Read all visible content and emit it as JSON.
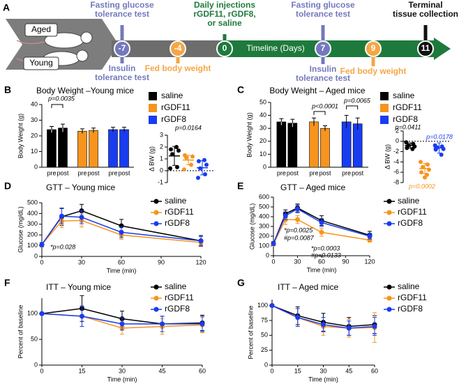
{
  "timeline": {
    "panel": "A",
    "groups": [
      "Aged",
      "Young"
    ],
    "axis_label": "Timeline (Days)",
    "events": [
      {
        "day": -7,
        "color": "#7479bd",
        "above": [
          "Fasting glucose",
          "tolerance test"
        ],
        "below": [
          "Insulin",
          "tolerance test"
        ]
      },
      {
        "day": -4,
        "color": "#f5a646",
        "below": [
          "Fed body weight"
        ]
      },
      {
        "day": 0,
        "color": "#1e7a3c",
        "above": [
          "Daily injections",
          "rGDF11, rGDF8,",
          "or saline"
        ]
      },
      {
        "day": 7,
        "color": "#7479bd",
        "above": [
          "Fasting glucose",
          "tolerance test"
        ],
        "below": [
          "Insulin",
          "tolerance test"
        ]
      },
      {
        "day": 9,
        "color": "#f5a646",
        "below": [
          "Fed body weight"
        ]
      },
      {
        "day": 11,
        "color": "#111111",
        "above": [
          "Terminal",
          "tissue collection"
        ]
      }
    ]
  },
  "chart_data": [
    {
      "type": "bar",
      "panel": "B",
      "title": "Body Weight –Young mice",
      "ylabel": "Body Weight (g)",
      "ylim": [
        0,
        40
      ],
      "yticks": [
        0,
        10,
        20,
        30,
        40
      ],
      "categories": [
        "pre",
        "post"
      ],
      "series": [
        {
          "name": "saline",
          "color": "#000000",
          "values": [
            24,
            25
          ],
          "errors": [
            2,
            2.5
          ]
        },
        {
          "name": "rGDF11",
          "color": "#f7941d",
          "values": [
            23,
            23.5
          ],
          "errors": [
            1.5,
            1.5
          ]
        },
        {
          "name": "rGDF8",
          "color": "#1a3cf0",
          "values": [
            24,
            24
          ],
          "errors": [
            1.5,
            1.5
          ]
        }
      ],
      "annotations": [
        {
          "text": "p=0.0035"
        }
      ]
    },
    {
      "type": "strip",
      "ylabel": "Δ BW (g)",
      "ylim": [
        -1,
        3
      ],
      "yticks": [
        -1,
        0,
        1,
        2,
        3
      ],
      "hline": 0,
      "series": [
        {
          "name": "saline",
          "color": "#000000",
          "values": [
            0.2,
            0.3,
            1.4,
            1.7,
            1.8,
            2.0
          ],
          "mean": 1.25,
          "error": 0.8
        },
        {
          "name": "rGDF11",
          "color": "#f7941d",
          "values": [
            0.1,
            0.5,
            1.1,
            1.2,
            1.3
          ],
          "mean": 0.9,
          "error": 0.4
        },
        {
          "name": "rGDF8",
          "color": "#1a3cf0",
          "values": [
            -0.6,
            -0.3,
            0.2,
            0.5,
            0.8,
            0.9
          ],
          "mean": 0.25,
          "error": 0.6
        }
      ],
      "annotations": [
        {
          "text": "p=0.0164"
        }
      ]
    },
    {
      "type": "bar",
      "panel": "C",
      "title": "Body Weight – Aged mice",
      "ylabel": "Body Weight (g)",
      "ylim": [
        0,
        50
      ],
      "yticks": [
        0,
        10,
        20,
        30,
        40,
        50
      ],
      "categories": [
        "pre",
        "post"
      ],
      "series": [
        {
          "name": "saline",
          "color": "#000000",
          "values": [
            35,
            34
          ],
          "errors": [
            2.5,
            3
          ]
        },
        {
          "name": "rGDF11",
          "color": "#f7941d",
          "values": [
            35,
            30
          ],
          "errors": [
            3,
            2
          ]
        },
        {
          "name": "rGDF8",
          "color": "#1a3cf0",
          "values": [
            35,
            33.5
          ],
          "errors": [
            5,
            4.5
          ]
        }
      ],
      "annotations": [
        {
          "text": "p<0.0001"
        },
        {
          "text": "p=0.0065"
        }
      ]
    },
    {
      "type": "strip",
      "ylabel": "Δ BW (g)",
      "ylim": [
        -8,
        2
      ],
      "yticks": [
        -8,
        -6,
        -4,
        -2,
        0,
        2
      ],
      "hline": 0,
      "series": [
        {
          "name": "saline",
          "color": "#000000",
          "values": [
            -0.2,
            -0.5,
            -0.8,
            -1.0,
            -1.3,
            -1.5
          ],
          "mean": -0.8,
          "error": 0.5
        },
        {
          "name": "rGDF11",
          "color": "#f7941d",
          "values": [
            -4.0,
            -4.5,
            -5.0,
            -5.5,
            -6.0,
            -6.5,
            -7.0
          ],
          "mean": -5.3,
          "error": 1
        },
        {
          "name": "rGDF8",
          "color": "#1a3cf0",
          "values": [
            -0.8,
            -1.0,
            -1.2,
            -1.5,
            -1.6,
            -2.6
          ],
          "mean": -1.3,
          "error": 1
        }
      ],
      "annotations": [
        {
          "text": "p=0.0411",
          "color": "#000000"
        },
        {
          "text": "p=0.0178",
          "color": "#1a3cf0"
        },
        {
          "text": "p=0.0002",
          "color": "#f7941d"
        }
      ]
    },
    {
      "type": "line",
      "panel": "D",
      "title": "GTT – Young mice",
      "xlabel": "Time (min)",
      "ylabel": "Glucose (mg/dL)",
      "x": [
        0,
        15,
        30,
        60,
        120
      ],
      "xlim": [
        0,
        120
      ],
      "xticks": [
        0,
        30,
        60,
        90,
        120
      ],
      "ylim": [
        0,
        500
      ],
      "yticks": [
        0,
        100,
        200,
        300,
        400,
        500
      ],
      "series": [
        {
          "name": "saline",
          "color": "#000000",
          "values": [
            110,
            370,
            425,
            285,
            145
          ],
          "errors": [
            20,
            80,
            60,
            60,
            50
          ]
        },
        {
          "name": "rGDF11",
          "color": "#f7941d",
          "values": [
            110,
            330,
            335,
            200,
            130
          ],
          "errors": [
            20,
            60,
            60,
            40,
            30
          ]
        },
        {
          "name": "rGDF8",
          "color": "#1a3cf0",
          "values": [
            110,
            375,
            365,
            225,
            145
          ],
          "errors": [
            20,
            70,
            60,
            50,
            40
          ]
        }
      ],
      "annotations": [
        {
          "text": "*p=0.028"
        }
      ]
    },
    {
      "type": "line",
      "panel": "E",
      "title": "GTT – Aged mice",
      "xlabel": "Time (min)",
      "ylabel": "Glucose (mg/dL)",
      "x": [
        0,
        15,
        30,
        60,
        120
      ],
      "xlim": [
        0,
        120
      ],
      "xticks": [
        0,
        30,
        60,
        90,
        120
      ],
      "ylim": [
        0,
        600
      ],
      "yticks": [
        0,
        100,
        200,
        300,
        400,
        500,
        600
      ],
      "series": [
        {
          "name": "saline",
          "color": "#000000",
          "values": [
            125,
            430,
            490,
            360,
            210
          ],
          "errors": [
            20,
            40,
            40,
            50,
            40
          ]
        },
        {
          "name": "rGDF11",
          "color": "#f7941d",
          "values": [
            120,
            370,
            370,
            240,
            160
          ],
          "errors": [
            20,
            50,
            40,
            40,
            20
          ]
        },
        {
          "name": "rGDF8",
          "color": "#1a3cf0",
          "values": [
            125,
            410,
            480,
            340,
            200
          ],
          "errors": [
            20,
            40,
            40,
            40,
            30
          ]
        }
      ],
      "annotations": [
        {
          "text": "*p=0.0025"
        },
        {
          "text": "#p=0.0087"
        },
        {
          "text": "*p=0.0003"
        },
        {
          "text": "#p=0.0133"
        }
      ]
    },
    {
      "type": "line",
      "panel": "F",
      "title": "ITT – Young mice",
      "xlabel": "Time (min)",
      "ylabel": "Percent of baseline",
      "x": [
        0,
        15,
        30,
        45,
        60
      ],
      "xlim": [
        0,
        60
      ],
      "xticks": [
        0,
        15,
        30,
        45,
        60
      ],
      "ylim": [
        0,
        130
      ],
      "yticks": [
        0,
        50,
        100
      ],
      "series": [
        {
          "name": "saline",
          "color": "#000000",
          "values": [
            100,
            110,
            90,
            80,
            82
          ],
          "errors": [
            0,
            25,
            15,
            15,
            15
          ]
        },
        {
          "name": "rGDF11",
          "color": "#f7941d",
          "values": [
            100,
            95,
            72,
            75,
            78
          ],
          "errors": [
            0,
            20,
            12,
            15,
            15
          ]
        },
        {
          "name": "rGDF8",
          "color": "#1a3cf0",
          "values": [
            100,
            95,
            80,
            80,
            80
          ],
          "errors": [
            0,
            20,
            12,
            15,
            15
          ]
        }
      ]
    },
    {
      "type": "line",
      "panel": "G",
      "title": "ITT – Aged mice",
      "xlabel": "Time (min)",
      "ylabel": "Percent of baseline",
      "x": [
        0,
        15,
        30,
        45,
        60
      ],
      "xlim": [
        0,
        60
      ],
      "xticks": [
        0,
        15,
        30,
        45,
        60
      ],
      "ylim": [
        0,
        110
      ],
      "yticks": [
        0,
        25,
        50,
        75,
        100
      ],
      "series": [
        {
          "name": "saline",
          "color": "#000000",
          "values": [
            100,
            83,
            72,
            65,
            68
          ],
          "errors": [
            0,
            15,
            15,
            15,
            15
          ]
        },
        {
          "name": "rGDF11",
          "color": "#f7941d",
          "values": [
            100,
            80,
            65,
            62,
            63
          ],
          "errors": [
            0,
            15,
            15,
            15,
            25
          ]
        },
        {
          "name": "rGDF8",
          "color": "#1a3cf0",
          "values": [
            100,
            80,
            68,
            62,
            65
          ],
          "errors": [
            0,
            15,
            12,
            12,
            15
          ]
        }
      ]
    }
  ]
}
